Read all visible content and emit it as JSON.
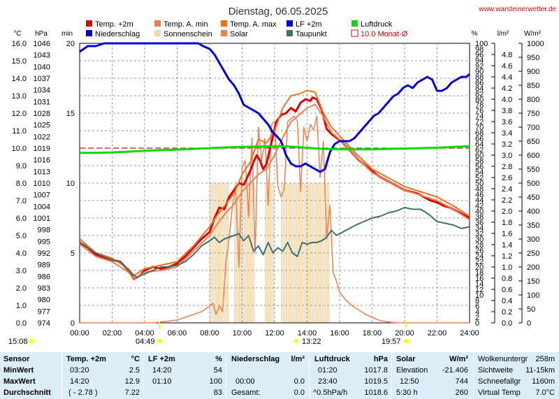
{
  "header": {
    "title": "Dienstag, 06.05.2025",
    "site_link": "www.warsteinerwetter.de"
  },
  "axes": {
    "left_units": [
      "°C",
      "hPa",
      "min"
    ],
    "right_units": [
      "%",
      "l/m²",
      "W/m²"
    ],
    "temp_ticks": [
      "16.0",
      "15.0",
      "14.0",
      "13.0",
      "12.0",
      "11.0",
      "10.0",
      "9.0",
      "8.0",
      "7.0",
      "6.0",
      "5.0",
      "4.0",
      "3.0",
      "2.0",
      "1.0",
      "0.0"
    ],
    "hpa_ticks": [
      "1046",
      "1043",
      "1040",
      "1037",
      "1034",
      "1031",
      "1028",
      "1025",
      "1022",
      "1019",
      "1016",
      "1013",
      "1010",
      "1007",
      "1004",
      "1001",
      "998",
      "995",
      "992",
      "989",
      "986",
      "983",
      "980",
      "977",
      "974"
    ],
    "min_ticks": [
      "20",
      "15",
      "10",
      "5",
      "0"
    ],
    "pct_ticks": [
      "100",
      "96",
      "92",
      "88",
      "84",
      "80",
      "76",
      "72",
      "68",
      "64",
      "60",
      "56",
      "52",
      "48",
      "44",
      "40",
      "36",
      "32",
      "28",
      "24",
      "20",
      "16",
      "12",
      "8",
      "4",
      "0"
    ],
    "pct_ticks_b": [
      "98",
      "94",
      "90",
      "86",
      "82",
      "78",
      "74",
      "70",
      "66",
      "62",
      "58",
      "54",
      "50",
      "46",
      "42",
      "38",
      "34",
      "30",
      "26",
      "22",
      "18",
      "14",
      "10",
      "6",
      "2"
    ],
    "rain_ticks": [
      "4.8",
      "4.6",
      "4.4",
      "4.2",
      "4.0",
      "3.8",
      "3.6",
      "3.4",
      "3.2",
      "3.0",
      "2.8",
      "2.6",
      "2.4",
      "2.2",
      "2.0",
      "1.8",
      "1.6",
      "1.4",
      "1.2",
      "1.0",
      "0.8",
      "0.6",
      "0.4",
      "0.2",
      "0.0"
    ],
    "solar_ticks": [
      "1000",
      "950",
      "900",
      "850",
      "800",
      "750",
      "700",
      "650",
      "600",
      "550",
      "500",
      "450",
      "400",
      "350",
      "300",
      "250",
      "200",
      "150",
      "100",
      "50",
      "0"
    ],
    "time_ticks": [
      "00:00",
      "02:00",
      "04:00",
      "06:00",
      "08:00",
      "10:00",
      "12:00",
      "14:00",
      "16:00",
      "18:00",
      "20:00",
      "22:00",
      "24:00"
    ]
  },
  "legend": [
    {
      "label": "Temp. +2m",
      "color": "#e00000",
      "swatch": "fill"
    },
    {
      "label": "Temp. A. min",
      "color": "#f08050",
      "swatch": "fill"
    },
    {
      "label": "Temp. A. max",
      "color": "#f07020",
      "swatch": "fill"
    },
    {
      "label": "LF +2m",
      "color": "#0000e0",
      "swatch": "fill"
    },
    {
      "label": "Luftdruck",
      "color": "#00dd00",
      "swatch": "fill"
    },
    {
      "label": "Niederschlag",
      "color": "#0000e0",
      "swatch": "fill"
    },
    {
      "label": "Sonnenschein",
      "color": "#f5d8a8",
      "swatch": "fill"
    },
    {
      "label": "Solar",
      "color": "#f08050",
      "swatch": "fill"
    },
    {
      "label": "Taupunkt",
      "color": "#407070",
      "swatch": "fill"
    },
    {
      "label": "10.0 Monat-Ø",
      "color": "#e00000",
      "swatch": "outline"
    }
  ],
  "sun_events": {
    "sunrise": "04:49",
    "sunset": "19:57",
    "noon": "13:22",
    "moon": "15:08"
  },
  "chart_data": {
    "type": "line",
    "x_unit": "hour",
    "xlim": [
      0,
      24
    ],
    "ylim_temp": [
      0,
      16
    ],
    "ylim_pressure": [
      974,
      1046
    ],
    "ylim_humidity": [
      0,
      100
    ],
    "ylim_solar": [
      0,
      1000
    ],
    "ylim_sunshine_min": [
      0,
      20
    ],
    "ylim_rain": [
      0,
      5
    ],
    "monthly_mean_temp": 10.0,
    "series": [
      {
        "name": "Temp. +2m",
        "color": "#e00000",
        "width": 3,
        "x": [
          0,
          0.5,
          1,
          1.5,
          2,
          2.5,
          3,
          3.33,
          3.7,
          4,
          4.5,
          5,
          5.5,
          6,
          6.5,
          7,
          7.5,
          8,
          8.3,
          8.6,
          8.9,
          9.2,
          9.5,
          9.8,
          10.1,
          10.3,
          10.5,
          10.7,
          10.9,
          11.1,
          11.3,
          11.5,
          11.8,
          12.1,
          12.4,
          12.7,
          13,
          13.3,
          13.6,
          13.9,
          14.2,
          14.33,
          14.6,
          14.9,
          15.2,
          15.5,
          15.8,
          16.1,
          16.4,
          16.8,
          17.2,
          17.6,
          18,
          18.4,
          18.8,
          19.2,
          19.6,
          20,
          20.4,
          20.8,
          21.2,
          21.6,
          22,
          22.4,
          22.8,
          23.2,
          23.6,
          24
        ],
        "y": [
          4.6,
          4.3,
          3.9,
          3.7,
          3.6,
          3.5,
          3.0,
          2.5,
          2.7,
          3.0,
          3.2,
          3.1,
          3.2,
          3.4,
          3.8,
          4.3,
          4.8,
          5.2,
          6.0,
          6.6,
          6.5,
          7.2,
          7.6,
          8.0,
          7.9,
          8.3,
          8.7,
          9.2,
          9.6,
          9.3,
          8.8,
          9.1,
          10.3,
          11.5,
          11.9,
          12.0,
          12.3,
          12.1,
          12.6,
          12.8,
          12.7,
          12.9,
          12.8,
          12.2,
          11.1,
          10.8,
          10.6,
          10.4,
          10.1,
          9.7,
          9.3,
          9.0,
          8.7,
          8.4,
          8.2,
          8.0,
          7.8,
          7.6,
          7.5,
          7.4,
          7.2,
          7.0,
          6.9,
          6.7,
          6.6,
          6.4,
          6.2,
          6.0
        ]
      },
      {
        "name": "Temp. A. min",
        "color": "#f08050",
        "width": 2,
        "x": [
          0,
          1,
          2,
          3,
          3.33,
          4,
          5,
          6,
          7,
          8,
          8.5,
          9,
          9.5,
          10,
          10.5,
          11,
          11.5,
          12,
          12.5,
          13,
          13.5,
          14,
          14.5,
          15,
          15.5,
          16,
          17,
          18,
          19,
          20,
          21,
          22,
          23,
          24
        ],
        "y": [
          4.5,
          3.8,
          3.5,
          2.9,
          2.5,
          2.9,
          3.0,
          3.2,
          4.1,
          5.0,
          5.7,
          6.3,
          6.8,
          7.5,
          8.0,
          8.5,
          8.8,
          9.6,
          10.6,
          11.5,
          11.9,
          12.3,
          12.5,
          11.8,
          10.9,
          10.5,
          9.5,
          8.6,
          8.1,
          7.6,
          7.3,
          7.0,
          6.5,
          5.9
        ]
      },
      {
        "name": "Temp. A. max",
        "color": "#f07020",
        "width": 2,
        "x": [
          0,
          1,
          2,
          3,
          3.33,
          4,
          5,
          6,
          7,
          8,
          8.5,
          9,
          9.5,
          10,
          10.5,
          11,
          11.5,
          12,
          12.5,
          13,
          13.5,
          14,
          14.5,
          15,
          15.5,
          16,
          17,
          18,
          19,
          20,
          21,
          22,
          23,
          24
        ],
        "y": [
          4.8,
          4.0,
          3.7,
          3.1,
          2.7,
          3.1,
          3.3,
          3.5,
          4.4,
          5.5,
          6.2,
          6.8,
          7.4,
          8.5,
          9.2,
          10.5,
          10.3,
          11.0,
          12.3,
          13.0,
          13.1,
          13.3,
          13.2,
          12.0,
          11.2,
          10.7,
          9.7,
          8.8,
          8.3,
          7.8,
          7.5,
          7.2,
          6.7,
          6.1
        ]
      },
      {
        "name": "LF +2m",
        "color": "#0000e0",
        "width": 3,
        "axis": "humidity",
        "x": [
          0,
          0.5,
          1,
          1.5,
          2,
          2.5,
          3,
          3.5,
          4,
          4.5,
          5,
          5.5,
          6,
          6.5,
          7,
          7.3,
          7.6,
          8,
          8.3,
          8.6,
          8.9,
          9.2,
          9.5,
          9.8,
          10.1,
          10.4,
          10.7,
          11,
          11.3,
          11.6,
          11.9,
          12.1,
          12.4,
          12.7,
          13,
          13.3,
          13.6,
          13.9,
          14.2,
          14.5,
          14.8,
          15.1,
          15.4,
          15.7,
          16,
          16.3,
          16.6,
          16.9,
          17.2,
          17.5,
          17.8,
          18.1,
          18.4,
          18.7,
          19,
          19.3,
          19.6,
          19.9,
          20.2,
          20.5,
          20.8,
          21.1,
          21.4,
          21.7,
          22,
          22.3,
          22.6,
          22.9,
          23.2,
          23.5,
          23.8,
          24
        ],
        "y": [
          97,
          99,
          99,
          100,
          100,
          100,
          100,
          100,
          100,
          100,
          100,
          100,
          100,
          100,
          100,
          100,
          99,
          98,
          96,
          93,
          90,
          87,
          85,
          82,
          78,
          77,
          76,
          75,
          73,
          71,
          68,
          67,
          65,
          60,
          57,
          56,
          56,
          57,
          56,
          55,
          54,
          55,
          61,
          64,
          65,
          65,
          65,
          66,
          68,
          70,
          72,
          74,
          75,
          77,
          79,
          81,
          82,
          84,
          85,
          84,
          86,
          87,
          88,
          87,
          83,
          83,
          84,
          86,
          87,
          88,
          88,
          89
        ]
      },
      {
        "name": "Luftdruck",
        "color": "#00dd00",
        "width": 3,
        "axis": "pressure",
        "x": [
          0,
          1,
          2,
          3,
          4,
          5,
          6,
          7,
          8,
          9,
          10,
          11,
          12,
          13,
          14,
          15,
          16,
          17,
          18,
          19,
          20,
          21,
          22,
          23,
          24
        ],
        "y": [
          1017.8,
          1017.8,
          1017.9,
          1018.1,
          1018.3,
          1018.5,
          1018.6,
          1018.8,
          1019.0,
          1019.2,
          1019.3,
          1019.4,
          1019.5,
          1019.4,
          1019.1,
          1018.8,
          1018.7,
          1018.7,
          1018.7,
          1018.8,
          1018.9,
          1019.0,
          1019.1,
          1019.3,
          1019.5
        ]
      },
      {
        "name": "Taupunkt",
        "color": "#407070",
        "width": 2,
        "x": [
          0,
          0.5,
          1,
          1.5,
          2,
          2.5,
          3,
          3.5,
          4,
          4.5,
          5,
          5.5,
          6,
          6.5,
          7,
          7.5,
          8,
          8.3,
          8.6,
          8.9,
          9.2,
          9.5,
          9.8,
          10.1,
          10.4,
          10.7,
          11,
          11.3,
          11.6,
          11.9,
          12.2,
          12.5,
          12.8,
          13.1,
          13.4,
          13.7,
          14,
          14.3,
          14.6,
          14.9,
          15.2,
          15.5,
          15.8,
          16.2,
          16.6,
          17,
          17.5,
          18,
          18.5,
          19,
          19.5,
          20,
          20.5,
          21,
          21.5,
          22,
          22.5,
          23,
          23.5,
          24
        ],
        "y": [
          4.6,
          4.3,
          4.0,
          3.8,
          3.6,
          3.5,
          3.0,
          2.6,
          2.8,
          3.0,
          3.2,
          3.2,
          3.3,
          3.5,
          3.9,
          4.4,
          4.7,
          4.9,
          4.6,
          4.8,
          4.9,
          5.0,
          5.1,
          4.7,
          5.0,
          4.1,
          4.4,
          3.9,
          4.6,
          4.0,
          4.3,
          4.1,
          4.6,
          4.0,
          3.8,
          4.6,
          4.5,
          4.6,
          4.6,
          4.7,
          4.9,
          5.3,
          5.0,
          5.2,
          5.4,
          5.6,
          5.8,
          6.0,
          6.1,
          6.3,
          6.4,
          6.6,
          6.5,
          6.5,
          6.2,
          5.8,
          5.7,
          5.6,
          5.4,
          5.5
        ]
      }
    ],
    "solar_wm2": {
      "x": [
        0,
        4.5,
        6,
        7,
        7.5,
        8,
        8.2,
        8.4,
        8.6,
        8.8,
        9,
        9.2,
        9.4,
        9.6,
        9.8,
        10,
        10.2,
        10.4,
        10.6,
        10.8,
        11,
        11.2,
        11.4,
        11.6,
        11.8,
        12,
        12.2,
        12.4,
        12.6,
        12.8,
        13,
        13.2,
        13.4,
        13.6,
        13.8,
        14,
        14.2,
        14.4,
        14.6,
        14.8,
        15,
        15.2,
        15.4,
        15.6,
        15.8,
        16,
        16.4,
        16.8,
        17.2,
        17.6,
        18,
        18.4,
        18.8,
        19.2,
        19.6,
        20,
        24
      ],
      "y": [
        0,
        0,
        10,
        30,
        40,
        60,
        70,
        30,
        60,
        40,
        220,
        300,
        420,
        480,
        200,
        560,
        580,
        380,
        660,
        250,
        700,
        580,
        660,
        420,
        710,
        720,
        490,
        450,
        480,
        720,
        730,
        740,
        720,
        470,
        700,
        650,
        710,
        690,
        740,
        520,
        650,
        300,
        420,
        180,
        150,
        110,
        80,
        60,
        45,
        30,
        20,
        10,
        5,
        2,
        0,
        0,
        0
      ]
    },
    "sunshine_min": {
      "x_start": 8.0,
      "x_end": 15.3,
      "value_during_sun": 10,
      "gaps": [
        [
          9.1,
          9.4
        ],
        [
          10.7,
          11.3
        ],
        [
          11.9,
          12.3
        ]
      ]
    }
  },
  "stats_table": {
    "headers": [
      "Sensor",
      "Temp. +2m",
      "°C",
      "LF +2m",
      "%",
      "Niederschlag",
      "l/m²",
      "Luftdruck",
      "hPa",
      "Solar",
      "W/m²"
    ],
    "rows": [
      {
        "label": "MinWert",
        "t_time": "03:20",
        "t_val": "2.5",
        "h_time": "14:20",
        "h_val": "54",
        "r_time": "",
        "r_val": "",
        "p_time": "01:20",
        "p_val": "1017.8",
        "s_label": "Elevation",
        "s_val": "-21.406"
      },
      {
        "label": "MaxWert",
        "t_time": "14:20",
        "t_val": "12.9",
        "h_time": "01:10",
        "h_val": "100",
        "r_time": "00:00",
        "r_val": "0.0",
        "p_time": "23:40",
        "p_val": "1019.5",
        "s_label": "12:50",
        "s_val": "744"
      },
      {
        "label": "Durchschnitt",
        "t_time": "( - 2.78 )",
        "t_val": "7.22",
        "h_time": "",
        "h_val": "83",
        "r_time": "Gesamt:",
        "r_val": "0.0",
        "p_time": "^0.5hPa/h",
        "p_val": "1018.6",
        "s_label": "5:30 h",
        "s_val": "260"
      }
    ],
    "extra": [
      {
        "label": "Wolkenuntergr",
        "value": "258m"
      },
      {
        "label": "Sichtweite",
        "value": "11-15km"
      },
      {
        "label": "Schneefallgr",
        "value": "1160m"
      },
      {
        "label": "Virtual Temp",
        "value": "7.0°C"
      }
    ]
  },
  "colors": {
    "grid": "#999999",
    "stats_bg": "#dbeef7",
    "sun_marker": "#ffff00"
  }
}
